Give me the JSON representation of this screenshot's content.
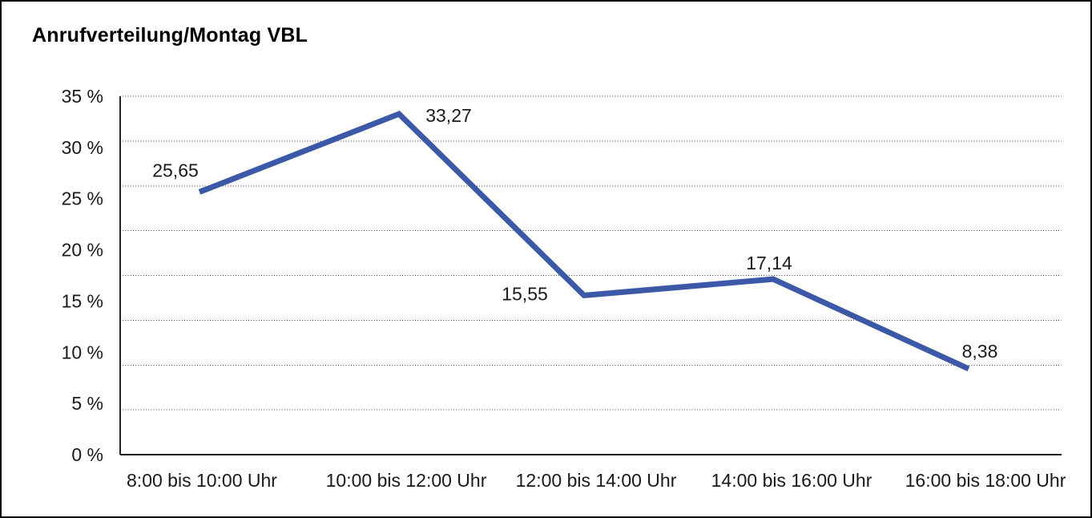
{
  "title": "Anrufverteilung/Montag VBL",
  "chart_data": {
    "type": "line",
    "title": "Anrufverteilung/Montag VBL",
    "categories": [
      "8:00 bis 10:00 Uhr",
      "10:00 bis 12:00 Uhr",
      "12:00 bis 14:00 Uhr",
      "14:00 bis 16:00 Uhr",
      "16:00 bis 18:00 Uhr"
    ],
    "values": [
      25.65,
      33.27,
      15.55,
      17.14,
      8.38
    ],
    "data_labels": [
      "25,65",
      "33,27",
      "15,55",
      "17,14",
      "8,38"
    ],
    "y_tick_labels": [
      "35 %",
      "30 %",
      "25 %",
      "20 %",
      "15 %",
      "10 %",
      "5 %",
      "0 %"
    ],
    "ylim": [
      0,
      35
    ],
    "y_step": 5,
    "xlabel": "",
    "ylabel": "",
    "legend": "none",
    "grid": "horizontal-dotted",
    "line_color": "#3B59A6",
    "text_color": "#1a1a1a",
    "axis_color": "#222222",
    "grid_color": "#444444"
  }
}
